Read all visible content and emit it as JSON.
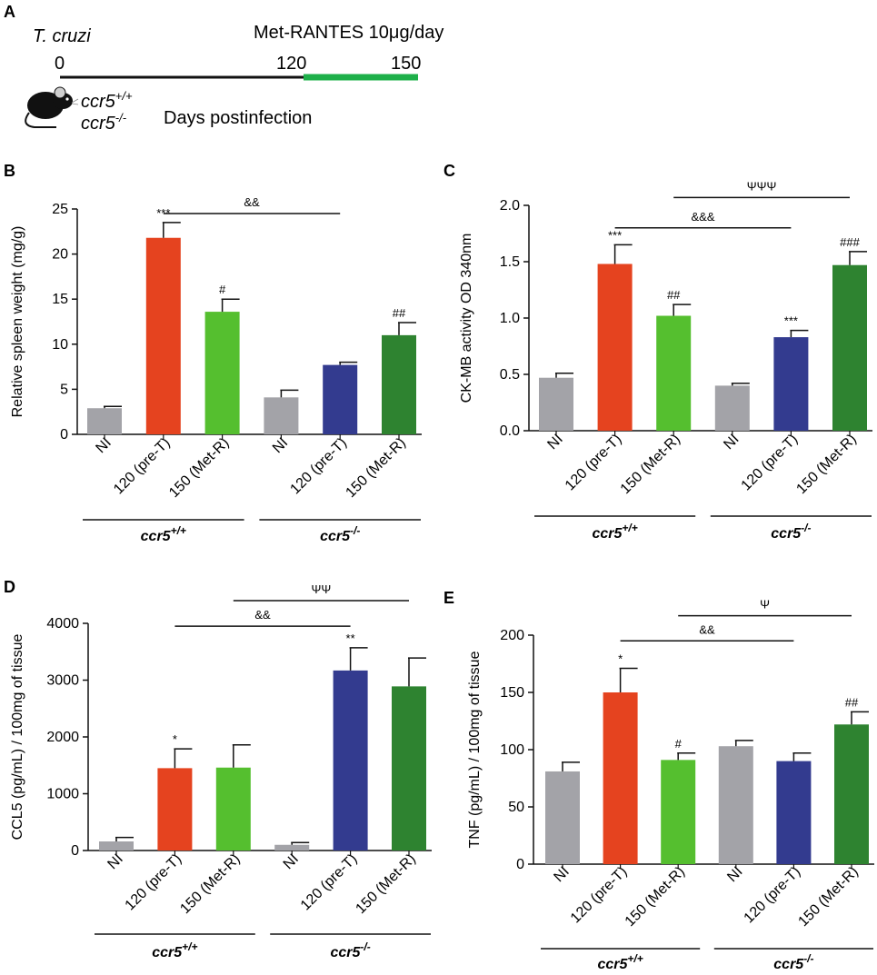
{
  "timeline": {
    "panel_label": "A",
    "organism": "T. cruzi",
    "treatment": "Met-RANTES 10μg/day",
    "ticks": [
      "0",
      "120",
      "150"
    ],
    "genotype_wt": "ccr5",
    "genotype_wt_sup": "+/+",
    "genotype_ko": "ccr5",
    "genotype_ko_sup": "-/-",
    "axis_label": "Days postinfection",
    "colors": {
      "infection": "#111111",
      "treatment": "#1eb04a"
    }
  },
  "colors": {
    "gray": "#a3a3a8",
    "red": "#e5431f",
    "lightgreen": "#55bf2f",
    "blue": "#333b8f",
    "darkgreen": "#2e8330"
  },
  "categories": [
    "NI",
    "120 (pre-T)",
    "150 (Met-R)",
    "NI",
    "120 (pre-T)",
    "150 (Met-R)"
  ],
  "groups": [
    {
      "label": "ccr5",
      "sup": "+/+"
    },
    {
      "label": "ccr5",
      "sup": "-/-"
    }
  ],
  "chart_data": [
    {
      "type": "bar",
      "panel": "B",
      "ylabel": "Relative spleen weight (mg/g)",
      "ylim": [
        0,
        25
      ],
      "yticks": [
        "0",
        "5",
        "10",
        "15",
        "20",
        "25"
      ],
      "values": [
        2.9,
        21.8,
        13.6,
        4.1,
        7.7,
        11.0
      ],
      "errors": [
        0.2,
        1.7,
        1.4,
        0.8,
        0.3,
        1.4
      ],
      "annotations": [
        "",
        "***",
        "#",
        "",
        "",
        "##"
      ],
      "brackets": [
        {
          "from": 1,
          "to": 4,
          "label": "&&",
          "level": 24.5
        }
      ]
    },
    {
      "type": "bar",
      "panel": "C",
      "ylabel": "CK-MB activity OD 340nm",
      "ylim": [
        0,
        2.0
      ],
      "yticks": [
        "0.0",
        "0.5",
        "1.0",
        "1.5",
        "2.0"
      ],
      "values": [
        0.47,
        1.48,
        1.02,
        0.4,
        0.83,
        1.47
      ],
      "errors": [
        0.04,
        0.17,
        0.1,
        0.02,
        0.06,
        0.12
      ],
      "annotations": [
        "",
        "***",
        "##",
        "",
        "***",
        "###"
      ],
      "brackets": [
        {
          "from": 1,
          "to": 4,
          "label": "&&&",
          "level": 1.8
        },
        {
          "from": 2,
          "to": 5,
          "label": "ΨΨΨ",
          "level": 2.07
        }
      ]
    },
    {
      "type": "bar",
      "panel": "D",
      "ylabel": "CCL5 (pg/mL) / 100mg of tissue",
      "ylim": [
        0,
        4000
      ],
      "yticks": [
        "0",
        "1000",
        "2000",
        "3000",
        "4000"
      ],
      "values": [
        160,
        1450,
        1460,
        100,
        3170,
        2890
      ],
      "errors": [
        70,
        340,
        400,
        40,
        400,
        500
      ],
      "annotations": [
        "",
        "*",
        "",
        "",
        "**",
        ""
      ],
      "brackets": [
        {
          "from": 1,
          "to": 4,
          "label": "&&",
          "level": 3950
        },
        {
          "from": 2,
          "to": 5,
          "label": "ΨΨ",
          "level": 4400
        }
      ]
    },
    {
      "type": "bar",
      "panel": "E",
      "ylabel": "TNF (pg/mL) / 100mg of tissue",
      "ylim": [
        0,
        200
      ],
      "yticks": [
        "0",
        "50",
        "100",
        "150",
        "200"
      ],
      "values": [
        81,
        150,
        91,
        103,
        90,
        122
      ],
      "errors": [
        8,
        21,
        6,
        5,
        7,
        11
      ],
      "annotations": [
        "",
        "*",
        "#",
        "",
        "",
        "##"
      ],
      "brackets": [
        {
          "from": 1,
          "to": 4,
          "label": "&&",
          "level": 195
        },
        {
          "from": 2,
          "to": 5,
          "label": "Ψ",
          "level": 217
        }
      ]
    }
  ]
}
